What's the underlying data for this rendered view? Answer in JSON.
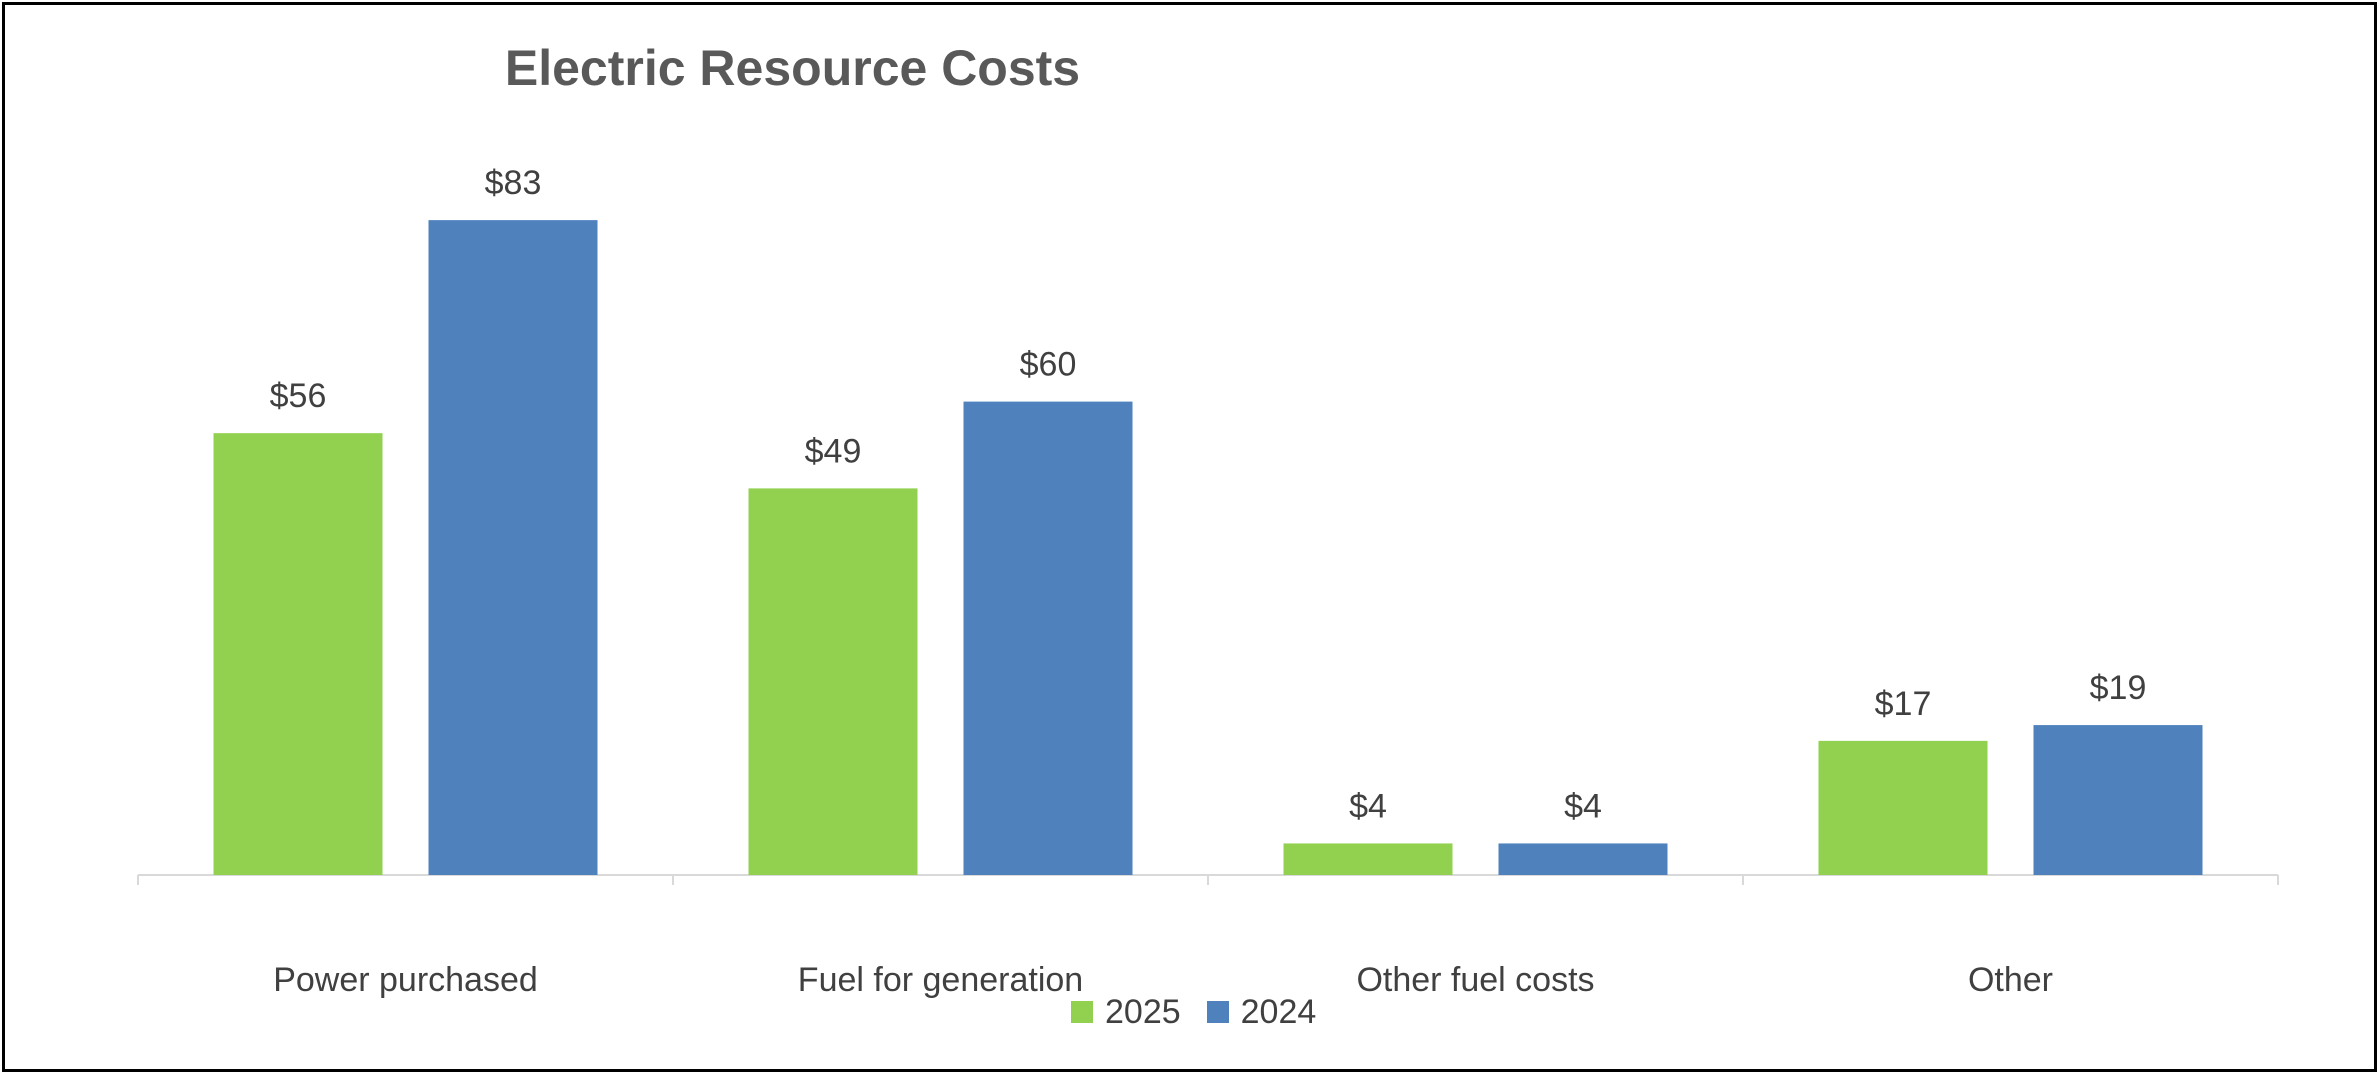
{
  "chart_data": {
    "type": "bar",
    "title": "Electric Resource Costs",
    "categories": [
      "Power purchased",
      "Fuel for generation",
      "Other fuel costs",
      "Other"
    ],
    "series": [
      {
        "name": "2025",
        "color": "#92D050",
        "values": [
          56,
          49,
          4,
          17
        ],
        "labels": [
          "$56",
          "$49",
          "$4",
          "$17"
        ]
      },
      {
        "name": "2024",
        "color": "#4F81BD",
        "values": [
          83,
          60,
          4,
          19
        ],
        "labels": [
          "$83",
          "$60",
          "$4",
          "$19"
        ]
      }
    ],
    "xlabel": "",
    "ylabel": "",
    "ylim": [
      0,
      85
    ],
    "grid": false,
    "legend_position": "bottom"
  }
}
